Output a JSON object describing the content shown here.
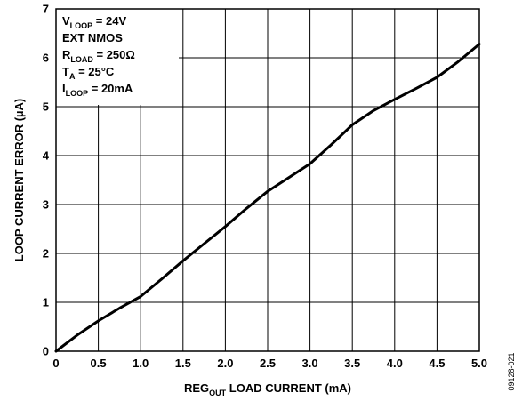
{
  "chart_data": {
    "type": "line",
    "xlabel": {
      "pre": "REG",
      "sub": "OUT",
      "post": " LOAD CURRENT (mA)"
    },
    "ylabel": "LOOP CURRENT ERROR (µA)",
    "xlim": [
      0,
      5.0
    ],
    "ylim": [
      0,
      7
    ],
    "x_ticks": [
      "0",
      "0.5",
      "1.0",
      "1.5",
      "2.0",
      "2.5",
      "3.0",
      "3.5",
      "4.0",
      "4.5",
      "5.0"
    ],
    "y_ticks": [
      "0",
      "1",
      "2",
      "3",
      "4",
      "5",
      "6",
      "7"
    ],
    "grid": true,
    "series": [
      {
        "x": [
          0,
          0.25,
          0.5,
          0.75,
          1.0,
          1.25,
          1.5,
          1.75,
          2.0,
          2.25,
          2.5,
          2.75,
          3.0,
          3.25,
          3.5,
          3.75,
          4.0,
          4.25,
          4.5,
          4.75,
          5.0
        ],
        "y": [
          0,
          0.33,
          0.62,
          0.88,
          1.12,
          1.48,
          1.85,
          2.2,
          2.55,
          2.92,
          3.27,
          3.55,
          3.83,
          4.22,
          4.63,
          4.92,
          5.15,
          5.37,
          5.6,
          5.92,
          6.28
        ]
      }
    ],
    "conditions": [
      {
        "pre": "V",
        "sub": "LOOP",
        "post": " = 24V"
      },
      {
        "pre": "EXT NMOS",
        "sub": "",
        "post": ""
      },
      {
        "pre": "R",
        "sub": "LOAD",
        "post": " = 250Ω"
      },
      {
        "pre": "T",
        "sub": "A",
        "post": " = 25°C"
      },
      {
        "pre": "I",
        "sub": "LOOP",
        "post": " = 20mA"
      }
    ],
    "figure_id": "09128-021",
    "colors": {
      "line": "#000000",
      "grid": "#000000",
      "background": "#ffffff"
    }
  }
}
